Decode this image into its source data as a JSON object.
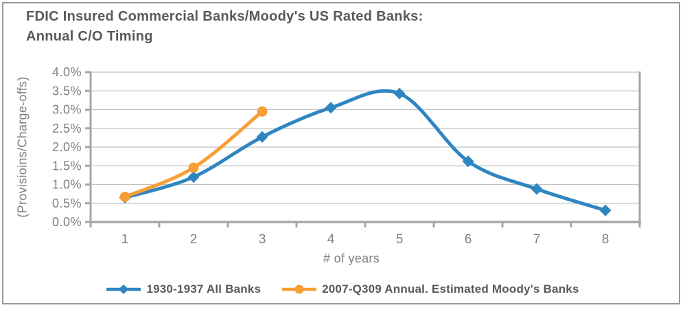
{
  "chart_data": {
    "type": "line",
    "line_style": "smooth",
    "title_line1": "FDIC Insured Commercial Banks/Moody's US Rated Banks:",
    "title_line2": "Annual C/O Timing",
    "ylabel": "(Provisioins/Charge-offs)",
    "xlabel": "# of years",
    "categories": [
      "1",
      "2",
      "3",
      "4",
      "5",
      "6",
      "7",
      "8"
    ],
    "ylim": [
      0,
      4.0
    ],
    "ytick_step": 0.5,
    "ytick_labels": [
      "0.0%",
      "0.5%",
      "1.0%",
      "1.5%",
      "2.0%",
      "2.5%",
      "3.0%",
      "3.5%",
      "4.0%"
    ],
    "grid": true,
    "legend_position": "bottom",
    "series": [
      {
        "name": "1930-1937 All Banks",
        "color": "#2E86C1",
        "marker": "diamond",
        "values": [
          0.65,
          1.2,
          2.27,
          3.05,
          3.43,
          1.62,
          0.88,
          0.31
        ]
      },
      {
        "name": "2007-Q309 Annual. Estimated Moody's Banks",
        "color": "#F79E36",
        "marker": "circle",
        "values": [
          0.67,
          1.45,
          2.95
        ]
      }
    ],
    "colors": {
      "title_text": "#595959",
      "axis_text": "#7f7f7f",
      "legend_text": "#595959",
      "grid_line": "#c2c2c2",
      "axis_line": "#a6a6a6",
      "frame_border": "#999999"
    }
  }
}
